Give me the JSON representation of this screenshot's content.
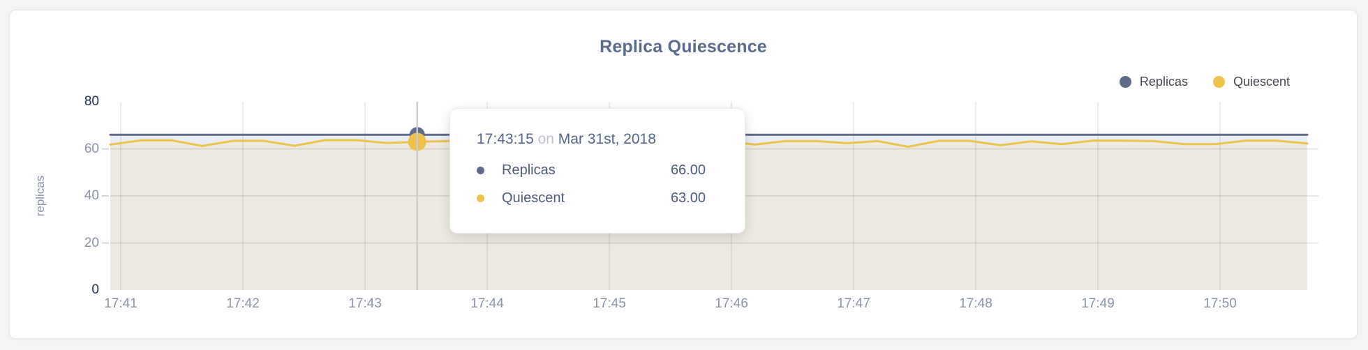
{
  "theme": {
    "page_background": "#f3f4f5",
    "card_background": "#ffffff",
    "title_color": "#5a6b8c",
    "axis_label_color": "#8a93a6",
    "axis_extreme_label_color": "#233150",
    "replicas_color": "#5f6b8b",
    "quiescent_color": "#ecc24c",
    "replicas_fill": "#e9ecf4",
    "quiescent_fill": "#eeeae1",
    "crosshair_color": "#cbcccf"
  },
  "chart_data": {
    "type": "line",
    "title": "Replica Quiescence",
    "xlabel": "",
    "ylabel": "replicas",
    "ylim": [
      0,
      80
    ],
    "yticks": [
      80,
      60,
      40,
      20,
      0
    ],
    "xticks": [
      "17:41",
      "17:42",
      "17:43",
      "17:44",
      "17:45",
      "17:46",
      "17:47",
      "17:48",
      "17:49",
      "17:50"
    ],
    "grid": true,
    "legend_position": "top-right",
    "series": [
      {
        "name": "Replicas",
        "color": "#5f6b8b",
        "fill": "#e9ecf4",
        "values": [
          66,
          66,
          66,
          66,
          66,
          66,
          66,
          66,
          66,
          66,
          66,
          66,
          66,
          66,
          66,
          66,
          66,
          66,
          66,
          66,
          66,
          66,
          66,
          66,
          66,
          66,
          66,
          66,
          66,
          66,
          66,
          66,
          66,
          66,
          66,
          66,
          66,
          66,
          66,
          66
        ]
      },
      {
        "name": "Quiescent",
        "color": "#ecc24c",
        "fill": "#eeeae1",
        "values": [
          61.8,
          63.6,
          63.6,
          61.2,
          63.4,
          63.4,
          61.3,
          63.7,
          63.7,
          62.5,
          63.0,
          63.3,
          63.3,
          61.5,
          63.2,
          63.5,
          62.2,
          63.5,
          63.5,
          62.0,
          63.4,
          61.8,
          63.3,
          63.3,
          62.4,
          63.3,
          60.9,
          63.4,
          63.4,
          61.5,
          63.2,
          62.0,
          63.5,
          63.5,
          63.3,
          62.0,
          62.0,
          63.5,
          63.5,
          62.3
        ]
      }
    ],
    "hover": {
      "time": "17:43:15",
      "conj": "on",
      "date": "Mar 31st, 2018",
      "point_index": 10,
      "rows": [
        {
          "label": "Replicas",
          "value": "66.00",
          "color": "#5f6b8b"
        },
        {
          "label": "Quiescent",
          "value": "63.00",
          "color": "#ecc24c"
        }
      ]
    }
  }
}
